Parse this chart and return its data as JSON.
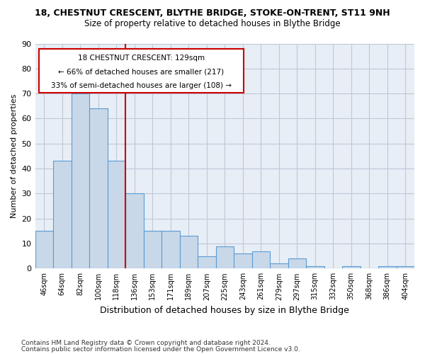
{
  "title1": "18, CHESTNUT CRESCENT, BLYTHE BRIDGE, STOKE-ON-TRENT, ST11 9NH",
  "title2": "Size of property relative to detached houses in Blythe Bridge",
  "xlabel": "Distribution of detached houses by size in Blythe Bridge",
  "ylabel": "Number of detached properties",
  "bins": [
    "46sqm",
    "64sqm",
    "82sqm",
    "100sqm",
    "118sqm",
    "136sqm",
    "153sqm",
    "171sqm",
    "189sqm",
    "207sqm",
    "225sqm",
    "243sqm",
    "261sqm",
    "279sqm",
    "297sqm",
    "315sqm",
    "332sqm",
    "350sqm",
    "368sqm",
    "386sqm",
    "404sqm"
  ],
  "values": [
    15,
    43,
    70,
    64,
    43,
    30,
    15,
    15,
    13,
    5,
    9,
    6,
    7,
    2,
    4,
    1,
    0,
    1,
    0,
    1,
    1
  ],
  "bar_color": "#c8d8e8",
  "bar_edge_color": "#5b9bd5",
  "grid_color": "#c0c8d8",
  "background_color": "#e8eef5",
  "annotation_box_color": "#ffffff",
  "annotation_border_color": "#cc0000",
  "redline_color": "#cc0000",
  "annotation_text1": "18 CHESTNUT CRESCENT: 129sqm",
  "annotation_text2": "← 66% of detached houses are smaller (217)",
  "annotation_text3": "33% of semi-detached houses are larger (108) →",
  "footer1": "Contains HM Land Registry data © Crown copyright and database right 2024.",
  "footer2": "Contains public sector information licensed under the Open Government Licence v3.0.",
  "ylim": [
    0,
    90
  ],
  "yticks": [
    0,
    10,
    20,
    30,
    40,
    50,
    60,
    70,
    80,
    90
  ]
}
